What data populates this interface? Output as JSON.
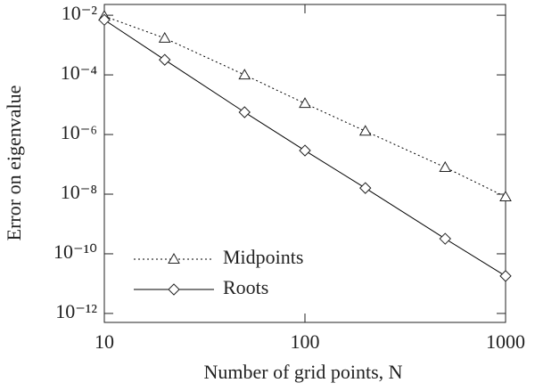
{
  "chart_data": {
    "type": "line",
    "xlabel": "Number of grid points, N",
    "ylabel": "Error on eigenvalue",
    "log_x": true,
    "log_y": true,
    "xlim": [
      10,
      1000
    ],
    "xticks": [
      10,
      100,
      1000
    ],
    "ylim": [
      5e-13,
      0.023
    ],
    "yticks": [
      {
        "value": 0.01,
        "label": "10⁻²"
      },
      {
        "value": 0.0001,
        "label": "10⁻⁴"
      },
      {
        "value": 1e-06,
        "label": "10⁻⁶"
      },
      {
        "value": 1e-08,
        "label": "10⁻⁸"
      },
      {
        "value": 1e-10,
        "label": "10⁻¹⁰"
      },
      {
        "value": 1e-12,
        "label": "10⁻¹²"
      }
    ],
    "legend": "lower left",
    "series": [
      {
        "name": "Midpoints",
        "color": "#000000",
        "line_style": "dotted",
        "marker": "triangle",
        "x": [
          10,
          20,
          50,
          100,
          200,
          500,
          1000
        ],
        "values": [
          0.0093,
          0.0017,
          0.0001,
          1.1e-05,
          1.3e-06,
          7.9e-08,
          8.1e-09
        ]
      },
      {
        "name": "Roots",
        "color": "#000000",
        "line_style": "solid",
        "marker": "diamond",
        "x": [
          10,
          20,
          50,
          100,
          200,
          500,
          1000
        ],
        "values": [
          0.007,
          0.00032,
          5.6e-06,
          2.9e-07,
          1.6e-08,
          3.2e-10,
          1.8e-11
        ]
      }
    ]
  }
}
